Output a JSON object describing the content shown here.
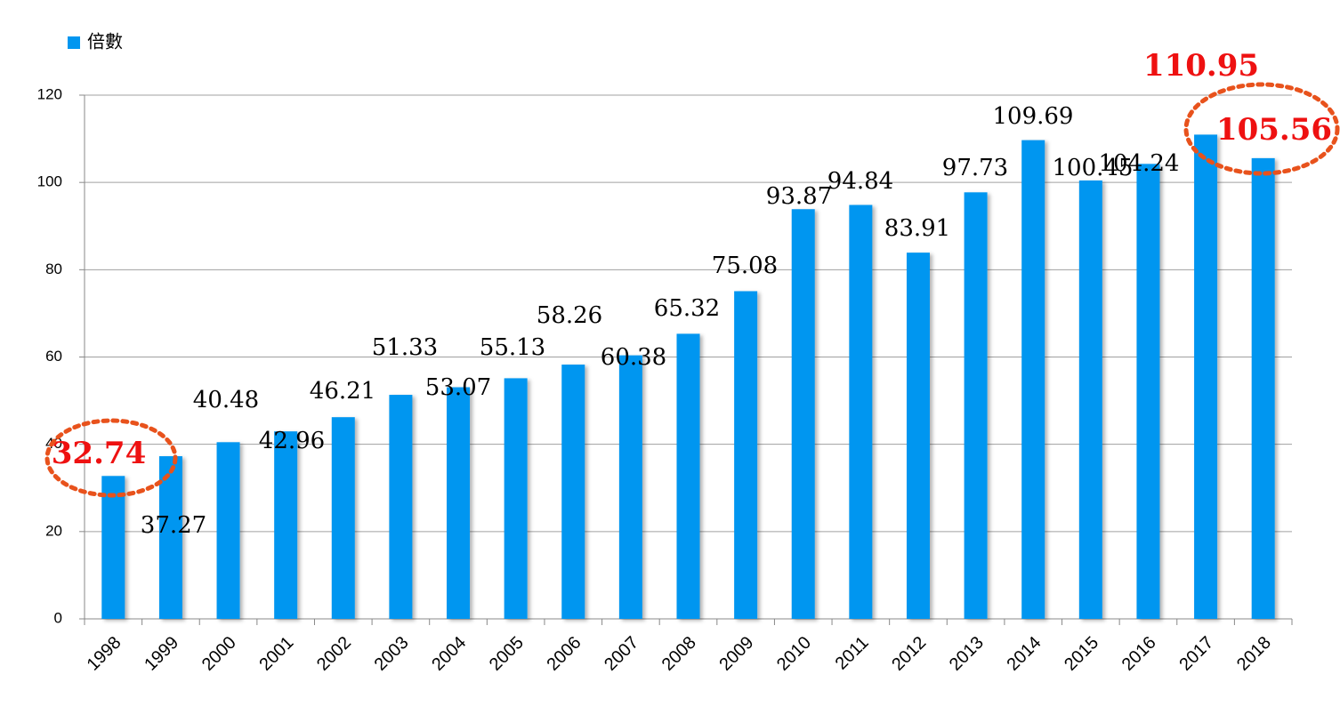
{
  "chart_data": {
    "type": "bar",
    "categories": [
      "1998",
      "1999",
      "2000",
      "2001",
      "2002",
      "2003",
      "2004",
      "2005",
      "2006",
      "2007",
      "2008",
      "2009",
      "2010",
      "2011",
      "2012",
      "2013",
      "2014",
      "2015",
      "2016",
      "2017",
      "2018"
    ],
    "series": [
      {
        "name": "倍數",
        "color": "#0096f0",
        "values": [
          32.74,
          37.27,
          40.48,
          42.96,
          46.21,
          51.33,
          53.07,
          55.13,
          58.26,
          60.38,
          65.32,
          75.08,
          93.87,
          94.84,
          83.91,
          97.73,
          109.69,
          100.45,
          104.24,
          110.95,
          105.56
        ]
      }
    ],
    "ylim": [
      0,
      120
    ],
    "yticks": [
      0,
      20,
      40,
      60,
      80,
      100,
      120
    ],
    "grid": true,
    "legend": "top-left",
    "highlight_color": "#ee1111",
    "highlighted": [
      0,
      19,
      20
    ],
    "circled": [
      0,
      20
    ],
    "circle_color": "#e8521c"
  }
}
